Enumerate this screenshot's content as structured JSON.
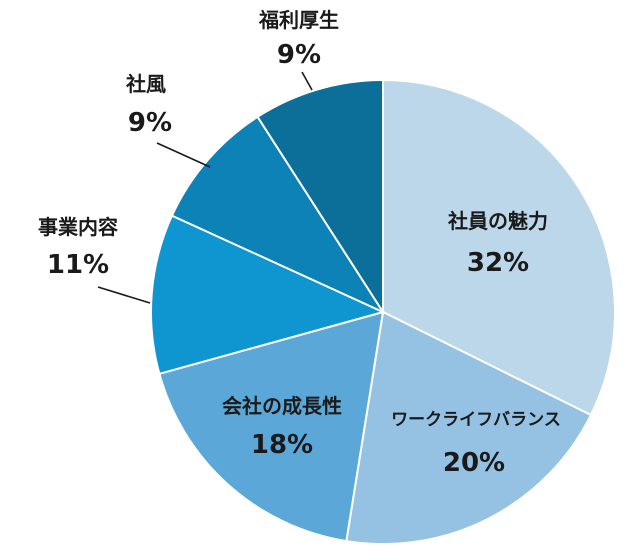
{
  "chart_data": {
    "type": "pie",
    "title": "",
    "start": "12 o'clock, clockwise",
    "slices": [
      {
        "label": "社員の魅力",
        "value": 32,
        "display": "32%",
        "color": "#bcd7ea"
      },
      {
        "label": "ワークライフバランス",
        "value": 20,
        "display": "20%",
        "color": "#95c1e3"
      },
      {
        "label": "会社の成長性",
        "value": 18,
        "display": "18%",
        "color": "#5ba8d8"
      },
      {
        "label": "事業内容",
        "value": 11,
        "display": "11%",
        "color": "#0f96d0"
      },
      {
        "label": "社風",
        "value": 9,
        "display": "9%",
        "color": "#0c82b7"
      },
      {
        "label": "福利厚生",
        "value": 9,
        "display": "9%",
        "color": "#0c6f99"
      }
    ]
  }
}
